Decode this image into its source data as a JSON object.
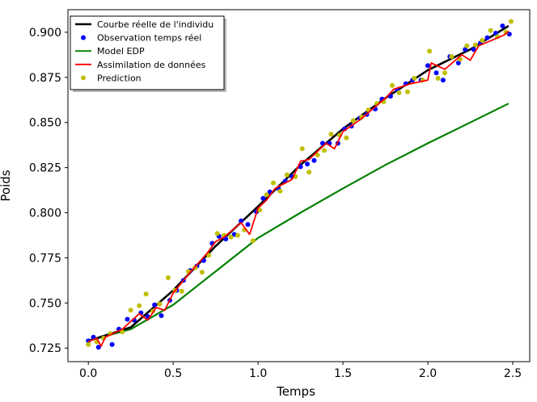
{
  "chart_data": {
    "type": "line",
    "xlabel": "Temps",
    "ylabel": "Poids",
    "xlim": [
      -0.12,
      2.6
    ],
    "ylim": [
      0.7175,
      0.9125
    ],
    "xticks": [
      0.0,
      0.5,
      1.0,
      1.5,
      2.0,
      2.5
    ],
    "xtick_labels": [
      "0.0",
      "0.5",
      "1.0",
      "1.5",
      "2.0",
      "2.5"
    ],
    "yticks": [
      0.725,
      0.75,
      0.775,
      0.8,
      0.825,
      0.85,
      0.875,
      0.9
    ],
    "ytick_labels": [
      "0.725",
      "0.750",
      "0.775",
      "0.800",
      "0.825",
      "0.850",
      "0.875",
      "0.900"
    ],
    "grid": false,
    "legend_position": "upper-left",
    "legend": [
      {
        "label": "Courbe réelle de l'individu",
        "kind": "line",
        "color": "#000000"
      },
      {
        "label": "Observation temps réel",
        "kind": "dot",
        "color": "#0000ff"
      },
      {
        "label": "Model EDP",
        "kind": "line",
        "color": "#008000"
      },
      {
        "label": "Assimilation de données",
        "kind": "line",
        "color": "#ff0000"
      },
      {
        "label": "Prediction",
        "kind": "dot",
        "color": "#bfbf00"
      }
    ],
    "series": [
      {
        "name": "Courbe réelle de l'individu",
        "kind": "line",
        "color": "#000000",
        "x": [
          0.0,
          0.25,
          0.5,
          0.75,
          1.0,
          1.25,
          1.5,
          1.75,
          2.0,
          2.25,
          2.475
        ],
        "y": [
          0.729,
          0.7365,
          0.757,
          0.7815,
          0.8035,
          0.8265,
          0.8465,
          0.8635,
          0.879,
          0.8905,
          0.9035
        ]
      },
      {
        "name": "Model EDP",
        "kind": "line",
        "color": "#008000",
        "x": [
          0.0,
          0.25,
          0.5,
          0.75,
          1.0,
          1.25,
          1.5,
          1.75,
          2.0,
          2.25,
          2.475
        ],
        "y": [
          0.729,
          0.7355,
          0.749,
          0.7675,
          0.786,
          0.8,
          0.8135,
          0.8265,
          0.8385,
          0.85,
          0.8605
        ]
      },
      {
        "name": "Assimilation de données",
        "kind": "line",
        "color": "#ff0000",
        "x": [
          0.0,
          0.05,
          0.075,
          0.1,
          0.2,
          0.3,
          0.35,
          0.4,
          0.45,
          0.5,
          0.6,
          0.7,
          0.75,
          0.8,
          0.9,
          0.95,
          1.0,
          1.05,
          1.1,
          1.2,
          1.25,
          1.3,
          1.4,
          1.45,
          1.5,
          1.6,
          1.7,
          1.75,
          1.8,
          1.9,
          2.0,
          2.02,
          2.1,
          2.2,
          2.25,
          2.3,
          2.4,
          2.45,
          2.475
        ],
        "y": [
          0.7285,
          0.7305,
          0.726,
          0.731,
          0.7355,
          0.744,
          0.7405,
          0.7475,
          0.746,
          0.7555,
          0.767,
          0.7775,
          0.784,
          0.7865,
          0.7945,
          0.788,
          0.8025,
          0.807,
          0.8135,
          0.8185,
          0.8285,
          0.8295,
          0.8385,
          0.8355,
          0.845,
          0.8515,
          0.8595,
          0.8635,
          0.8685,
          0.8715,
          0.8735,
          0.883,
          0.8795,
          0.8875,
          0.8845,
          0.8925,
          0.8965,
          0.8985,
          0.9005
        ]
      },
      {
        "name": "Observation temps réel",
        "kind": "scatter",
        "color": "#0000ff",
        "x": [
          0.0,
          0.03,
          0.06,
          0.14,
          0.18,
          0.23,
          0.27,
          0.31,
          0.35,
          0.39,
          0.43,
          0.48,
          0.52,
          0.56,
          0.6,
          0.64,
          0.68,
          0.73,
          0.77,
          0.81,
          0.86,
          0.9,
          0.94,
          0.99,
          1.03,
          1.07,
          1.12,
          1.16,
          1.2,
          1.25,
          1.29,
          1.33,
          1.38,
          1.42,
          1.47,
          1.51,
          1.55,
          1.6,
          1.64,
          1.69,
          1.73,
          1.78,
          1.82,
          1.87,
          1.91,
          1.96,
          2.0,
          2.05,
          2.09,
          2.13,
          2.18,
          2.22,
          2.27,
          2.31,
          2.35,
          2.4,
          2.44,
          2.48
        ],
        "y": [
          0.729,
          0.731,
          0.7255,
          0.727,
          0.7355,
          0.741,
          0.7405,
          0.7445,
          0.7425,
          0.749,
          0.743,
          0.7515,
          0.757,
          0.7625,
          0.768,
          0.7705,
          0.7735,
          0.783,
          0.787,
          0.7855,
          0.788,
          0.7955,
          0.7935,
          0.8005,
          0.808,
          0.8115,
          0.8135,
          0.8175,
          0.82,
          0.8255,
          0.827,
          0.829,
          0.8385,
          0.8385,
          0.8385,
          0.8465,
          0.848,
          0.8525,
          0.8545,
          0.8575,
          0.863,
          0.8645,
          0.868,
          0.8715,
          0.8735,
          0.8735,
          0.8815,
          0.8775,
          0.8735,
          0.8865,
          0.883,
          0.8905,
          0.8905,
          0.894,
          0.897,
          0.8995,
          0.9035,
          0.899
        ]
      },
      {
        "name": "Prediction",
        "kind": "scatter",
        "color": "#bfbf00",
        "x": [
          0.0,
          0.05,
          0.09,
          0.13,
          0.2,
          0.25,
          0.3,
          0.34,
          0.38,
          0.42,
          0.47,
          0.51,
          0.55,
          0.59,
          0.63,
          0.67,
          0.71,
          0.76,
          0.8,
          0.84,
          0.88,
          0.92,
          0.97,
          1.01,
          1.05,
          1.09,
          1.13,
          1.17,
          1.22,
          1.26,
          1.3,
          1.35,
          1.39,
          1.43,
          1.48,
          1.52,
          1.56,
          1.61,
          1.65,
          1.7,
          1.74,
          1.79,
          1.83,
          1.88,
          1.92,
          1.97,
          2.01,
          2.06,
          2.1,
          2.14,
          2.19,
          2.23,
          2.28,
          2.32,
          2.37,
          2.41,
          2.46,
          2.49
        ],
        "y": [
          0.727,
          0.7285,
          0.7305,
          0.733,
          0.734,
          0.746,
          0.7485,
          0.755,
          0.7455,
          0.7495,
          0.764,
          0.757,
          0.7565,
          0.7675,
          0.7695,
          0.767,
          0.7765,
          0.7885,
          0.7875,
          0.7865,
          0.7875,
          0.7905,
          0.7845,
          0.8015,
          0.81,
          0.8165,
          0.812,
          0.821,
          0.82,
          0.8355,
          0.8225,
          0.832,
          0.8345,
          0.8435,
          0.843,
          0.8415,
          0.851,
          0.853,
          0.857,
          0.8605,
          0.8615,
          0.8705,
          0.8665,
          0.867,
          0.8745,
          0.8735,
          0.8895,
          0.8745,
          0.8775,
          0.8865,
          0.885,
          0.8925,
          0.893,
          0.8955,
          0.901,
          0.8975,
          0.9,
          0.906
        ]
      }
    ]
  }
}
